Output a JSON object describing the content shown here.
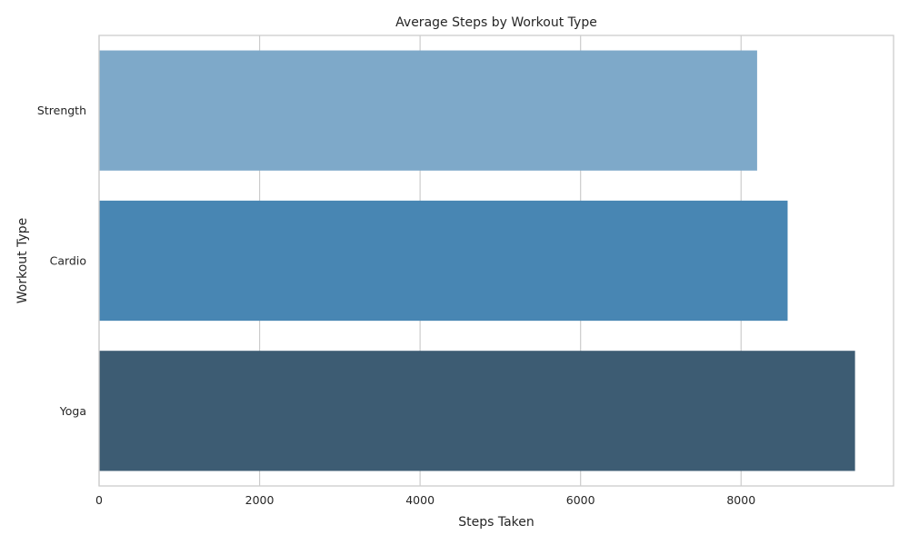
{
  "chart_data": {
    "type": "bar",
    "orientation": "horizontal",
    "title": "Average Steps by Workout Type",
    "xlabel": "Steps Taken",
    "ylabel": "Workout Type",
    "xlim": [
      0,
      9900
    ],
    "xticks": [
      0,
      2000,
      4000,
      6000,
      8000
    ],
    "grid": true,
    "categories": [
      "Strength",
      "Cardio",
      "Yoga"
    ],
    "values": [
      8200,
      8580,
      9420
    ],
    "colors": [
      "#7ea9c9",
      "#4886b3",
      "#3d5c73"
    ]
  }
}
